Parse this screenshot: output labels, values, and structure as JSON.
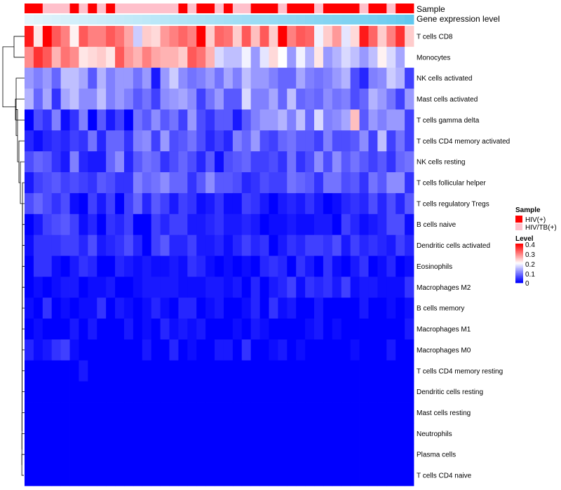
{
  "chart_data": {
    "type": "heatmap",
    "title": "",
    "tracks": {
      "sample_label": "Sample",
      "expression_label": "Gene expression level"
    },
    "rows": [
      "T cells CD8",
      "Monocytes",
      "NK cells activated",
      "Mast cells activated",
      "T cells gamma delta",
      "T cells CD4 memory activated",
      "NK cells resting",
      "T cells follicular helper",
      "T cells regulatory  Tregs",
      "B cells naive",
      "Dendritic cells activated",
      "Eosinophils",
      "Macrophages M2",
      "B cells memory",
      "Macrophages M1",
      "Macrophages M0",
      "T cells CD4 memory resting",
      "Dendritic cells resting",
      "Mast cells resting",
      "Neutrophils",
      "Plasma cells",
      "T cells CD4 naive"
    ],
    "n_columns": 43,
    "sample_groups": [
      "HIV(+)",
      "HIV(+)",
      "HIV/TB(+)",
      "HIV/TB(+)",
      "HIV/TB(+)",
      "HIV(+)",
      "HIV/TB(+)",
      "HIV(+)",
      "HIV/TB(+)",
      "HIV(+)",
      "HIV/TB(+)",
      "HIV/TB(+)",
      "HIV/TB(+)",
      "HIV/TB(+)",
      "HIV/TB(+)",
      "HIV/TB(+)",
      "HIV/TB(+)",
      "HIV(+)",
      "HIV/TB(+)",
      "HIV(+)",
      "HIV(+)",
      "HIV/TB(+)",
      "HIV(+)",
      "HIV/TB(+)",
      "HIV/TB(+)",
      "HIV(+)",
      "HIV(+)",
      "HIV(+)",
      "HIV/TB(+)",
      "HIV(+)",
      "HIV(+)",
      "HIV(+)",
      "HIV/TB(+)",
      "HIV(+)",
      "HIV(+)",
      "HIV(+)",
      "HIV(+)",
      "HIV/TB(+)",
      "HIV(+)",
      "HIV(+)",
      "HIV/TB(+)",
      "HIV(+)",
      "HIV(+)"
    ],
    "expression_level": [
      0.02,
      0.05,
      0.08,
      0.1,
      0.12,
      0.14,
      0.16,
      0.18,
      0.2,
      0.22,
      0.24,
      0.26,
      0.28,
      0.3,
      0.32,
      0.34,
      0.36,
      0.38,
      0.4,
      0.42,
      0.44,
      0.46,
      0.48,
      0.5,
      0.52,
      0.54,
      0.56,
      0.58,
      0.6,
      0.62,
      0.64,
      0.66,
      0.68,
      0.7,
      0.72,
      0.74,
      0.76,
      0.78,
      0.8,
      0.83,
      0.86,
      0.9,
      0.95
    ],
    "values": [
      [
        0.38,
        0.22,
        0.41,
        0.33,
        0.3,
        0.21,
        0.33,
        0.3,
        0.3,
        0.33,
        0.31,
        0.27,
        0.16,
        0.24,
        0.23,
        0.28,
        0.3,
        0.32,
        0.3,
        0.4,
        0.24,
        0.32,
        0.31,
        0.24,
        0.33,
        0.25,
        0.33,
        0.24,
        0.41,
        0.3,
        0.33,
        0.32,
        0.19,
        0.24,
        0.28,
        0.18,
        0.23,
        0.38,
        0.32,
        0.24,
        0.3,
        0.36,
        0.24
      ],
      [
        0.29,
        0.36,
        0.33,
        0.26,
        0.31,
        0.29,
        0.22,
        0.23,
        0.24,
        0.22,
        0.33,
        0.28,
        0.26,
        0.3,
        0.27,
        0.26,
        0.26,
        0.24,
        0.33,
        0.31,
        0.26,
        0.17,
        0.15,
        0.15,
        0.19,
        0.12,
        0.18,
        0.23,
        0.2,
        0.12,
        0.19,
        0.14,
        0.22,
        0.12,
        0.14,
        0.17,
        0.15,
        0.12,
        0.15,
        0.21,
        0.17,
        0.13,
        0.2
      ],
      [
        0.12,
        0.1,
        0.12,
        0.08,
        0.15,
        0.15,
        0.13,
        0.07,
        0.14,
        0.1,
        0.12,
        0.12,
        0.09,
        0.12,
        0.02,
        0.12,
        0.16,
        0.11,
        0.09,
        0.1,
        0.12,
        0.09,
        0.13,
        0.1,
        0.15,
        0.12,
        0.12,
        0.1,
        0.08,
        0.08,
        0.13,
        0.1,
        0.09,
        0.1,
        0.12,
        0.14,
        0.06,
        0.03,
        0.1,
        0.11,
        0.16,
        0.14,
        0.05
      ],
      [
        0.14,
        0.08,
        0.13,
        0.04,
        0.13,
        0.15,
        0.11,
        0.11,
        0.15,
        0.1,
        0.12,
        0.1,
        0.07,
        0.09,
        0.05,
        0.11,
        0.12,
        0.13,
        0.11,
        0.05,
        0.09,
        0.12,
        0.07,
        0.07,
        0.17,
        0.1,
        0.1,
        0.13,
        0.08,
        0.15,
        0.08,
        0.09,
        0.08,
        0.11,
        0.09,
        0.1,
        0.06,
        0.08,
        0.14,
        0.12,
        0.09,
        0.05,
        0.12
      ],
      [
        0.0,
        0.06,
        0.04,
        0.1,
        0.01,
        0.04,
        0.1,
        0.0,
        0.07,
        0.02,
        0.05,
        0.0,
        0.09,
        0.07,
        0.11,
        0.07,
        0.09,
        0.05,
        0.12,
        0.06,
        0.04,
        0.07,
        0.07,
        0.02,
        0.07,
        0.1,
        0.12,
        0.12,
        0.14,
        0.1,
        0.15,
        0.08,
        0.17,
        0.1,
        0.11,
        0.13,
        0.25,
        0.07,
        0.12,
        0.1,
        0.12,
        0.12,
        0.05
      ],
      [
        0.03,
        0.01,
        0.03,
        0.04,
        0.03,
        0.05,
        0.04,
        0.09,
        0.03,
        0.08,
        0.08,
        0.04,
        0.1,
        0.11,
        0.05,
        0.12,
        0.06,
        0.07,
        0.09,
        0.06,
        0.03,
        0.05,
        0.03,
        0.1,
        0.08,
        0.12,
        0.06,
        0.05,
        0.08,
        0.09,
        0.07,
        0.07,
        0.05,
        0.1,
        0.06,
        0.06,
        0.07,
        0.11,
        0.05,
        0.15,
        0.05,
        0.09,
        0.05
      ],
      [
        0.06,
        0.08,
        0.07,
        0.04,
        0.02,
        0.1,
        0.03,
        0.02,
        0.02,
        0.08,
        0.11,
        0.03,
        0.07,
        0.09,
        0.08,
        0.04,
        0.06,
        0.08,
        0.06,
        0.03,
        0.07,
        0.01,
        0.06,
        0.07,
        0.08,
        0.05,
        0.05,
        0.06,
        0.04,
        0.09,
        0.04,
        0.06,
        0.11,
        0.06,
        0.11,
        0.07,
        0.09,
        0.07,
        0.05,
        0.07,
        0.04,
        0.08,
        0.09
      ],
      [
        0.02,
        0.05,
        0.06,
        0.07,
        0.05,
        0.06,
        0.05,
        0.04,
        0.07,
        0.06,
        0.04,
        0.04,
        0.1,
        0.08,
        0.09,
        0.11,
        0.08,
        0.08,
        0.04,
        0.07,
        0.11,
        0.07,
        0.07,
        0.06,
        0.03,
        0.04,
        0.06,
        0.05,
        0.05,
        0.09,
        0.08,
        0.07,
        0.04,
        0.09,
        0.09,
        0.06,
        0.07,
        0.04,
        0.09,
        0.07,
        0.11,
        0.11,
        0.04
      ],
      [
        0.06,
        0.08,
        0.06,
        0.04,
        0.06,
        0.01,
        0.0,
        0.05,
        0.02,
        0.05,
        0.0,
        0.05,
        0.08,
        0.03,
        0.07,
        0.05,
        0.02,
        0.05,
        0.04,
        0.01,
        0.02,
        0.04,
        0.01,
        0.01,
        0.05,
        0.04,
        0.02,
        0.0,
        0.02,
        0.03,
        0.02,
        0.04,
        0.02,
        0.0,
        0.01,
        0.03,
        0.04,
        0.03,
        0.06,
        0.03,
        0.06,
        0.03,
        0.07
      ],
      [
        0.0,
        0.02,
        0.05,
        0.06,
        0.07,
        0.05,
        0.01,
        0.03,
        0.0,
        0.04,
        0.03,
        0.05,
        0.0,
        0.0,
        0.05,
        0.03,
        0.05,
        0.05,
        0.02,
        0.02,
        0.03,
        0.04,
        0.02,
        0.02,
        0.03,
        0.02,
        0.0,
        0.01,
        0.01,
        0.02,
        0.01,
        0.01,
        0.02,
        0.02,
        0.0,
        0.05,
        0.03,
        0.01,
        0.02,
        0.03,
        0.06,
        0.06,
        0.01
      ],
      [
        0.01,
        0.04,
        0.04,
        0.04,
        0.05,
        0.05,
        0.03,
        0.06,
        0.02,
        0.03,
        0.04,
        0.06,
        0.03,
        0.0,
        0.05,
        0.07,
        0.03,
        0.03,
        0.05,
        0.02,
        0.02,
        0.03,
        0.01,
        0.03,
        0.05,
        0.03,
        0.04,
        0.0,
        0.02,
        0.04,
        0.03,
        0.05,
        0.05,
        0.04,
        0.06,
        0.02,
        0.05,
        0.03,
        0.04,
        0.03,
        0.02,
        0.05,
        0.03
      ],
      [
        0.0,
        0.04,
        0.04,
        0.01,
        0.0,
        0.02,
        0.04,
        0.03,
        0.0,
        0.0,
        0.03,
        0.02,
        0.01,
        0.02,
        0.01,
        0.01,
        0.02,
        0.01,
        0.04,
        0.03,
        0.01,
        0.0,
        0.01,
        0.0,
        0.01,
        0.0,
        0.03,
        0.04,
        0.03,
        0.0,
        0.04,
        0.02,
        0.0,
        0.04,
        0.01,
        0.0,
        0.02,
        0.04,
        0.0,
        0.01,
        0.03,
        0.0,
        0.01
      ],
      [
        0.0,
        0.01,
        0.0,
        0.01,
        0.02,
        0.02,
        0.0,
        0.01,
        0.01,
        0.02,
        0.0,
        0.0,
        0.01,
        0.02,
        0.02,
        0.02,
        0.02,
        0.01,
        0.01,
        0.01,
        0.02,
        0.02,
        0.01,
        0.02,
        0.0,
        0.03,
        0.0,
        0.02,
        0.03,
        0.05,
        0.01,
        0.04,
        0.03,
        0.04,
        0.02,
        0.05,
        0.01,
        0.02,
        0.02,
        0.01,
        0.01,
        0.01,
        0.04
      ],
      [
        0.01,
        0.0,
        0.04,
        0.0,
        0.01,
        0.0,
        0.01,
        0.01,
        0.04,
        0.0,
        0.02,
        0.01,
        0.0,
        0.01,
        0.03,
        0.01,
        0.0,
        0.03,
        0.03,
        0.0,
        0.01,
        0.02,
        0.0,
        0.0,
        0.01,
        0.03,
        0.0,
        0.04,
        0.01,
        0.02,
        0.0,
        0.0,
        0.02,
        0.0,
        0.0,
        0.0,
        0.0,
        0.02,
        0.0,
        0.0,
        0.01,
        0.0,
        0.01
      ],
      [
        0.0,
        0.01,
        0.0,
        0.0,
        0.0,
        0.02,
        0.0,
        0.02,
        0.0,
        0.0,
        0.0,
        0.02,
        0.0,
        0.01,
        0.0,
        0.03,
        0.01,
        0.02,
        0.01,
        0.02,
        0.0,
        0.0,
        0.0,
        0.01,
        0.0,
        0.02,
        0.01,
        0.0,
        0.0,
        0.0,
        0.0,
        0.01,
        0.02,
        0.0,
        0.01,
        0.0,
        0.0,
        0.0,
        0.0,
        0.0,
        0.0,
        0.0,
        0.02
      ],
      [
        0.03,
        0.01,
        0.02,
        0.04,
        0.05,
        0.01,
        0.0,
        0.0,
        0.0,
        0.0,
        0.0,
        0.0,
        0.0,
        0.02,
        0.0,
        0.0,
        0.03,
        0.0,
        0.01,
        0.0,
        0.0,
        0.02,
        0.02,
        0.0,
        0.04,
        0.0,
        0.0,
        0.01,
        0.02,
        0.0,
        0.01,
        0.0,
        0.0,
        0.0,
        0.0,
        0.0,
        0.01,
        0.0,
        0.0,
        0.0,
        0.02,
        0.0,
        0.0
      ],
      [
        0.0,
        0.0,
        0.0,
        0.0,
        0.0,
        0.0,
        0.02,
        0.0,
        0.0,
        0.0,
        0.0,
        0.0,
        0.0,
        0.0,
        0.0,
        0.0,
        0.0,
        0.0,
        0.0,
        0.0,
        0.0,
        0.0,
        0.0,
        0.0,
        0.0,
        0.0,
        0.0,
        0.0,
        0.0,
        0.0,
        0.0,
        0.0,
        0.0,
        0.0,
        0.0,
        0.0,
        0.0,
        0.0,
        0.0,
        0.0,
        0.0,
        0.0,
        0.0
      ],
      [
        0.0,
        0.0,
        0.0,
        0.0,
        0.0,
        0.0,
        0.0,
        0.0,
        0.0,
        0.0,
        0.0,
        0.0,
        0.0,
        0.0,
        0.0,
        0.0,
        0.0,
        0.0,
        0.0,
        0.0,
        0.0,
        0.0,
        0.0,
        0.0,
        0.0,
        0.0,
        0.0,
        0.0,
        0.0,
        0.0,
        0.0,
        0.0,
        0.0,
        0.0,
        0.0,
        0.0,
        0.0,
        0.0,
        0.0,
        0.0,
        0.0,
        0.0,
        0.0
      ],
      [
        0.0,
        0.0,
        0.0,
        0.0,
        0.0,
        0.0,
        0.0,
        0.0,
        0.0,
        0.0,
        0.0,
        0.0,
        0.0,
        0.0,
        0.0,
        0.0,
        0.0,
        0.0,
        0.0,
        0.0,
        0.0,
        0.0,
        0.0,
        0.0,
        0.0,
        0.0,
        0.0,
        0.0,
        0.0,
        0.0,
        0.0,
        0.0,
        0.0,
        0.0,
        0.0,
        0.0,
        0.0,
        0.0,
        0.0,
        0.0,
        0.0,
        0.0,
        0.0
      ],
      [
        0.0,
        0.0,
        0.0,
        0.0,
        0.0,
        0.0,
        0.0,
        0.0,
        0.0,
        0.0,
        0.0,
        0.0,
        0.0,
        0.0,
        0.0,
        0.0,
        0.0,
        0.0,
        0.0,
        0.0,
        0.0,
        0.0,
        0.0,
        0.0,
        0.0,
        0.0,
        0.0,
        0.0,
        0.0,
        0.0,
        0.0,
        0.0,
        0.0,
        0.0,
        0.0,
        0.0,
        0.0,
        0.0,
        0.0,
        0.0,
        0.0,
        0.0,
        0.0
      ],
      [
        0.0,
        0.0,
        0.0,
        0.0,
        0.0,
        0.0,
        0.0,
        0.0,
        0.0,
        0.0,
        0.0,
        0.0,
        0.0,
        0.0,
        0.0,
        0.0,
        0.0,
        0.0,
        0.0,
        0.0,
        0.0,
        0.0,
        0.0,
        0.0,
        0.0,
        0.0,
        0.0,
        0.0,
        0.0,
        0.0,
        0.0,
        0.0,
        0.0,
        0.0,
        0.0,
        0.0,
        0.0,
        0.0,
        0.0,
        0.0,
        0.0,
        0.0,
        0.0
      ],
      [
        0.0,
        0.0,
        0.0,
        0.0,
        0.0,
        0.0,
        0.0,
        0.0,
        0.0,
        0.0,
        0.0,
        0.0,
        0.0,
        0.0,
        0.0,
        0.0,
        0.0,
        0.0,
        0.0,
        0.0,
        0.0,
        0.0,
        0.0,
        0.0,
        0.0,
        0.0,
        0.0,
        0.0,
        0.0,
        0.0,
        0.0,
        0.0,
        0.0,
        0.0,
        0.0,
        0.0,
        0.0,
        0.0,
        0.0,
        0.0,
        0.0,
        0.0,
        0.0
      ]
    ],
    "legend": {
      "sample_title": "Sample",
      "sample_entries": [
        {
          "label": "HIV(+)",
          "color": "#ff0000"
        },
        {
          "label": "HIV/TB(+)",
          "color": "#ffc0cb"
        }
      ],
      "level_title": "Level",
      "level_ticks": [
        "0.4",
        "0.3",
        "0.2",
        "0.1",
        "0"
      ],
      "level_range": [
        0,
        0.4
      ]
    },
    "colors": {
      "low": "#0000ff",
      "mid": "#ffffff",
      "high": "#ff0000",
      "expression_low": "#e8f6fc",
      "expression_high": "#5bc6ee"
    }
  }
}
